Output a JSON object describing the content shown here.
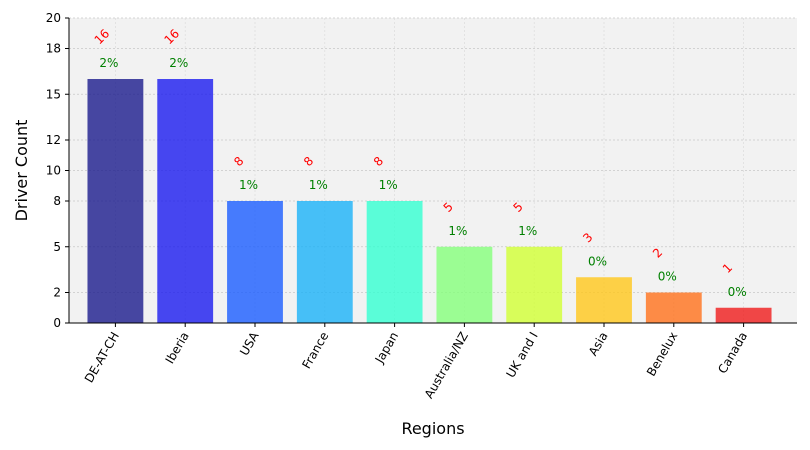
{
  "chart_data": {
    "type": "bar",
    "title": "",
    "xlabel": "Regions",
    "ylabel": "Driver Count",
    "ylim": [
      0,
      20
    ],
    "yticks": [
      0,
      2,
      5,
      8,
      10,
      12,
      15,
      18,
      20
    ],
    "grid": true,
    "categories": [
      "DE-AT-CH",
      "Iberia",
      "USA",
      "France",
      "Japan",
      "Australia/NZ",
      "UK and I",
      "Asia",
      "Benelux",
      "Canada"
    ],
    "values": [
      16,
      16,
      8,
      8,
      8,
      5,
      5,
      3,
      2,
      1
    ],
    "count_labels": [
      "16",
      "16",
      "8",
      "8",
      "8",
      "5",
      "5",
      "3",
      "2",
      "1"
    ],
    "percent_labels": [
      "2%",
      "2%",
      "1%",
      "1%",
      "1%",
      "1%",
      "1%",
      "0%",
      "0%",
      "0%"
    ],
    "colors": [
      "#1a1a8c",
      "#1a1aef",
      "#1a5cff",
      "#1ab2f7",
      "#33ffd1",
      "#85ff7a",
      "#d1ff33",
      "#ffc71a",
      "#ff701a",
      "#ef1a1a"
    ],
    "bar_opacity": 0.8,
    "plot_background": "#f2f2f2",
    "count_label_color": "#ff0000",
    "percent_label_color": "#008000"
  }
}
